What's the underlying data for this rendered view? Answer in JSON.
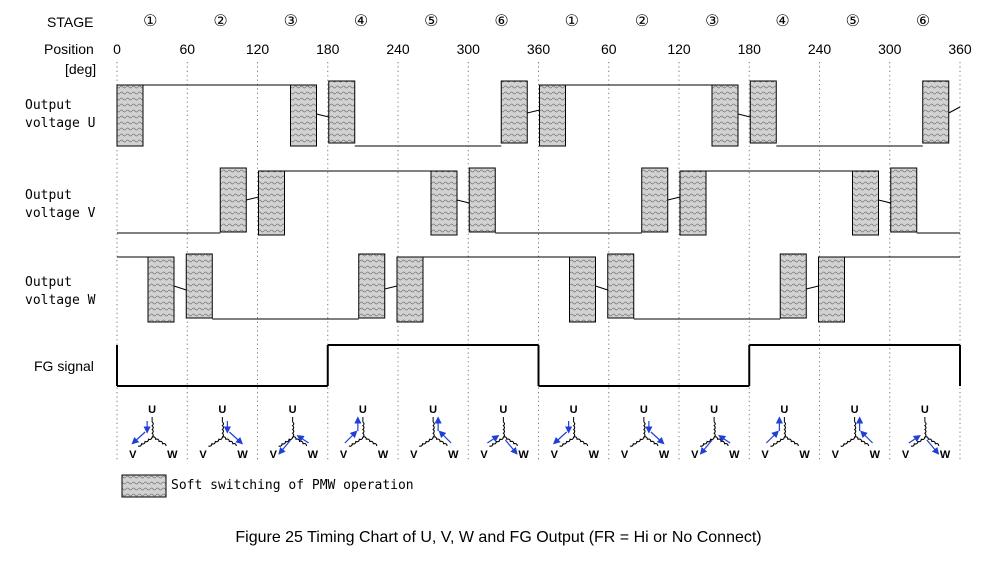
{
  "header": {
    "stage_label": "STAGE",
    "position_label": "Position",
    "position_unit": "[deg]",
    "stages": [
      "①",
      "②",
      "③",
      "④",
      "⑤",
      "⑥",
      "①",
      "②",
      "③",
      "④",
      "⑤",
      "⑥"
    ],
    "positions": [
      "0",
      "60",
      "120",
      "180",
      "240",
      "300",
      "360",
      "60",
      "120",
      "180",
      "240",
      "300",
      "360"
    ]
  },
  "rows": {
    "u_label_line1": "Output",
    "u_label_line2": "voltage U",
    "v_label_line1": "Output",
    "v_label_line2": "voltage V",
    "w_label_line1": "Output",
    "w_label_line2": "voltage W",
    "fg_label": "FG signal"
  },
  "diagrams": {
    "u": "U",
    "v": "V",
    "w": "W"
  },
  "legend": {
    "text": "Soft switching of PMW operation"
  },
  "caption": "Figure 25 Timing Chart of U, V, W and FG Output (FR = Hi or No Connect)",
  "colors": {
    "line": "#000000",
    "hatch_fill": "#c8c8c8",
    "arrow": "#1f3fd6"
  }
}
